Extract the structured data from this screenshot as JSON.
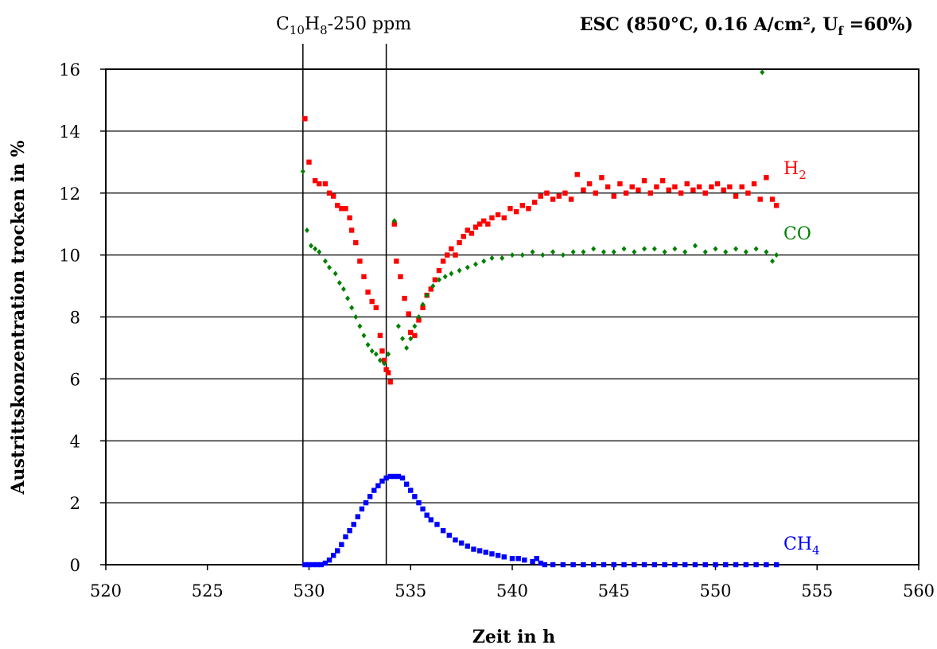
{
  "chart_data": {
    "type": "scatter",
    "title": {
      "main": "ESC (850°C, 0.16 A/cm², U",
      "sub": "f",
      "tail": " =60%)"
    },
    "annotation": {
      "parts": [
        {
          "t": "C",
          "sub": false
        },
        {
          "t": "10",
          "sub": true
        },
        {
          "t": "H",
          "sub": false
        },
        {
          "t": "8",
          "sub": true
        },
        {
          "t": "-250 ppm",
          "sub": false
        }
      ],
      "x_lines": [
        529.7,
        533.8
      ]
    },
    "xlabel": "Zeit in h",
    "ylabel": "Austrittskonzentration trocken in %",
    "xlim": [
      520,
      560
    ],
    "ylim": [
      0,
      16
    ],
    "x_ticks": [
      520,
      525,
      530,
      535,
      540,
      545,
      550,
      555,
      560
    ],
    "y_ticks": [
      0,
      2,
      4,
      6,
      8,
      10,
      12,
      14,
      16
    ],
    "grid": "horizontal",
    "series": [
      {
        "name": "H",
        "name_sub": "2",
        "color": "#ff0000",
        "marker": "square",
        "points": [
          [
            529.8,
            14.4
          ],
          [
            530.0,
            13.0
          ],
          [
            530.3,
            12.4
          ],
          [
            530.5,
            12.3
          ],
          [
            530.8,
            12.3
          ],
          [
            531.0,
            12.0
          ],
          [
            531.2,
            11.9
          ],
          [
            531.4,
            11.6
          ],
          [
            531.6,
            11.5
          ],
          [
            531.8,
            11.5
          ],
          [
            532.0,
            11.2
          ],
          [
            532.1,
            10.8
          ],
          [
            532.3,
            10.4
          ],
          [
            532.5,
            9.8
          ],
          [
            532.7,
            9.3
          ],
          [
            532.9,
            8.8
          ],
          [
            533.1,
            8.5
          ],
          [
            533.3,
            8.3
          ],
          [
            533.5,
            7.4
          ],
          [
            533.6,
            6.9
          ],
          [
            533.7,
            6.6
          ],
          [
            533.8,
            6.3
          ],
          [
            533.9,
            6.2
          ],
          [
            534.0,
            5.9
          ],
          [
            534.2,
            11.0
          ],
          [
            534.3,
            9.8
          ],
          [
            534.5,
            9.3
          ],
          [
            534.7,
            8.6
          ],
          [
            534.9,
            8.1
          ],
          [
            535.0,
            7.5
          ],
          [
            535.2,
            7.4
          ],
          [
            535.4,
            7.9
          ],
          [
            535.6,
            8.3
          ],
          [
            535.8,
            8.7
          ],
          [
            536.0,
            8.9
          ],
          [
            536.2,
            9.2
          ],
          [
            536.4,
            9.5
          ],
          [
            536.6,
            9.8
          ],
          [
            536.8,
            10.0
          ],
          [
            537.0,
            10.2
          ],
          [
            537.2,
            10.0
          ],
          [
            537.4,
            10.4
          ],
          [
            537.6,
            10.6
          ],
          [
            537.8,
            10.8
          ],
          [
            538.0,
            10.7
          ],
          [
            538.2,
            10.9
          ],
          [
            538.4,
            11.0
          ],
          [
            538.6,
            11.1
          ],
          [
            538.8,
            11.0
          ],
          [
            539.0,
            11.2
          ],
          [
            539.3,
            11.3
          ],
          [
            539.6,
            11.2
          ],
          [
            539.9,
            11.5
          ],
          [
            540.2,
            11.4
          ],
          [
            540.5,
            11.6
          ],
          [
            540.8,
            11.5
          ],
          [
            541.1,
            11.7
          ],
          [
            541.4,
            11.9
          ],
          [
            541.7,
            12.0
          ],
          [
            542.0,
            11.8
          ],
          [
            542.3,
            11.9
          ],
          [
            542.6,
            12.0
          ],
          [
            542.9,
            11.8
          ],
          [
            543.2,
            12.6
          ],
          [
            543.5,
            12.1
          ],
          [
            543.8,
            12.3
          ],
          [
            544.1,
            12.0
          ],
          [
            544.4,
            12.5
          ],
          [
            544.7,
            12.2
          ],
          [
            545.0,
            11.9
          ],
          [
            545.3,
            12.3
          ],
          [
            545.6,
            12.0
          ],
          [
            545.9,
            12.2
          ],
          [
            546.2,
            12.1
          ],
          [
            546.5,
            12.4
          ],
          [
            546.8,
            12.0
          ],
          [
            547.1,
            12.2
          ],
          [
            547.4,
            12.4
          ],
          [
            547.7,
            12.1
          ],
          [
            548.0,
            12.2
          ],
          [
            548.3,
            12.0
          ],
          [
            548.6,
            12.3
          ],
          [
            548.9,
            12.1
          ],
          [
            549.2,
            12.2
          ],
          [
            549.5,
            12.0
          ],
          [
            549.8,
            12.2
          ],
          [
            550.1,
            12.3
          ],
          [
            550.4,
            12.1
          ],
          [
            550.7,
            12.2
          ],
          [
            551.0,
            11.9
          ],
          [
            551.3,
            12.2
          ],
          [
            551.6,
            12.0
          ],
          [
            551.9,
            12.3
          ],
          [
            552.2,
            11.8
          ],
          [
            552.5,
            12.5
          ],
          [
            552.8,
            11.8
          ],
          [
            553.0,
            11.6
          ]
        ]
      },
      {
        "name": "CO",
        "name_sub": "",
        "color": "#008000",
        "marker": "diamond",
        "points": [
          [
            529.7,
            12.7
          ],
          [
            529.9,
            10.8
          ],
          [
            530.1,
            10.3
          ],
          [
            530.3,
            10.2
          ],
          [
            530.5,
            10.1
          ],
          [
            530.8,
            9.8
          ],
          [
            531.0,
            9.6
          ],
          [
            531.3,
            9.4
          ],
          [
            531.5,
            9.1
          ],
          [
            531.7,
            8.9
          ],
          [
            531.9,
            8.6
          ],
          [
            532.1,
            8.3
          ],
          [
            532.3,
            8.0
          ],
          [
            532.5,
            7.7
          ],
          [
            532.7,
            7.4
          ],
          [
            532.9,
            7.1
          ],
          [
            533.1,
            6.9
          ],
          [
            533.3,
            6.8
          ],
          [
            533.5,
            6.6
          ],
          [
            533.7,
            6.5
          ],
          [
            533.9,
            6.8
          ],
          [
            534.2,
            11.1
          ],
          [
            534.4,
            7.7
          ],
          [
            534.6,
            7.3
          ],
          [
            534.8,
            7.0
          ],
          [
            535.0,
            7.3
          ],
          [
            535.2,
            7.7
          ],
          [
            535.4,
            8.0
          ],
          [
            535.6,
            8.4
          ],
          [
            535.8,
            8.7
          ],
          [
            536.1,
            9.0
          ],
          [
            536.4,
            9.2
          ],
          [
            536.7,
            9.3
          ],
          [
            537.0,
            9.4
          ],
          [
            537.4,
            9.5
          ],
          [
            537.8,
            9.6
          ],
          [
            538.2,
            9.7
          ],
          [
            538.6,
            9.8
          ],
          [
            539.0,
            9.9
          ],
          [
            539.5,
            9.9
          ],
          [
            540.0,
            10.0
          ],
          [
            540.5,
            10.0
          ],
          [
            541.0,
            10.1
          ],
          [
            541.5,
            10.0
          ],
          [
            542.0,
            10.1
          ],
          [
            542.5,
            10.0
          ],
          [
            543.0,
            10.1
          ],
          [
            543.5,
            10.1
          ],
          [
            544.0,
            10.2
          ],
          [
            544.5,
            10.1
          ],
          [
            545.0,
            10.1
          ],
          [
            545.5,
            10.2
          ],
          [
            546.0,
            10.1
          ],
          [
            546.5,
            10.2
          ],
          [
            547.0,
            10.2
          ],
          [
            547.5,
            10.1
          ],
          [
            548.0,
            10.2
          ],
          [
            548.5,
            10.1
          ],
          [
            549.0,
            10.3
          ],
          [
            549.5,
            10.1
          ],
          [
            550.0,
            10.2
          ],
          [
            550.5,
            10.1
          ],
          [
            551.0,
            10.2
          ],
          [
            551.5,
            10.1
          ],
          [
            552.0,
            10.2
          ],
          [
            552.5,
            10.1
          ],
          [
            552.8,
            9.8
          ],
          [
            553.0,
            10.0
          ],
          [
            552.3,
            15.9
          ]
        ]
      },
      {
        "name": "CH",
        "name_sub": "4",
        "color": "#0000ff",
        "marker": "square",
        "points": [
          [
            529.8,
            0.0
          ],
          [
            530.0,
            0.0
          ],
          [
            530.2,
            0.0
          ],
          [
            530.4,
            0.0
          ],
          [
            530.6,
            0.0
          ],
          [
            530.8,
            0.05
          ],
          [
            531.0,
            0.15
          ],
          [
            531.2,
            0.3
          ],
          [
            531.4,
            0.45
          ],
          [
            531.6,
            0.65
          ],
          [
            531.8,
            0.9
          ],
          [
            532.0,
            1.1
          ],
          [
            532.2,
            1.3
          ],
          [
            532.4,
            1.55
          ],
          [
            532.6,
            1.8
          ],
          [
            532.8,
            2.0
          ],
          [
            533.0,
            2.2
          ],
          [
            533.2,
            2.4
          ],
          [
            533.4,
            2.55
          ],
          [
            533.6,
            2.7
          ],
          [
            533.8,
            2.8
          ],
          [
            534.0,
            2.85
          ],
          [
            534.2,
            2.85
          ],
          [
            534.4,
            2.85
          ],
          [
            534.6,
            2.8
          ],
          [
            534.8,
            2.6
          ],
          [
            535.0,
            2.4
          ],
          [
            535.2,
            2.2
          ],
          [
            535.4,
            2.0
          ],
          [
            535.6,
            1.8
          ],
          [
            535.8,
            1.6
          ],
          [
            536.0,
            1.45
          ],
          [
            536.3,
            1.3
          ],
          [
            536.6,
            1.1
          ],
          [
            536.9,
            0.95
          ],
          [
            537.2,
            0.8
          ],
          [
            537.5,
            0.7
          ],
          [
            537.8,
            0.6
          ],
          [
            538.1,
            0.5
          ],
          [
            538.4,
            0.45
          ],
          [
            538.7,
            0.4
          ],
          [
            539.0,
            0.35
          ],
          [
            539.3,
            0.3
          ],
          [
            539.6,
            0.25
          ],
          [
            540.0,
            0.2
          ],
          [
            540.3,
            0.2
          ],
          [
            540.6,
            0.15
          ],
          [
            541.0,
            0.1
          ],
          [
            541.2,
            0.2
          ],
          [
            541.4,
            0.05
          ],
          [
            541.6,
            0.0
          ],
          [
            542.0,
            0.0
          ],
          [
            542.5,
            0.0
          ],
          [
            543.0,
            0.0
          ],
          [
            543.5,
            0.0
          ],
          [
            544.0,
            0.0
          ],
          [
            544.5,
            0.0
          ],
          [
            545.0,
            0.0
          ],
          [
            545.5,
            0.0
          ],
          [
            546.0,
            0.0
          ],
          [
            546.5,
            0.0
          ],
          [
            547.0,
            0.0
          ],
          [
            547.5,
            0.0
          ],
          [
            548.0,
            0.0
          ],
          [
            548.5,
            0.0
          ],
          [
            549.0,
            0.0
          ],
          [
            549.5,
            0.0
          ],
          [
            550.0,
            0.0
          ],
          [
            550.5,
            0.0
          ],
          [
            551.0,
            0.0
          ],
          [
            551.5,
            0.0
          ],
          [
            552.0,
            0.0
          ],
          [
            552.5,
            0.0
          ],
          [
            553.0,
            0.0
          ]
        ]
      }
    ]
  }
}
